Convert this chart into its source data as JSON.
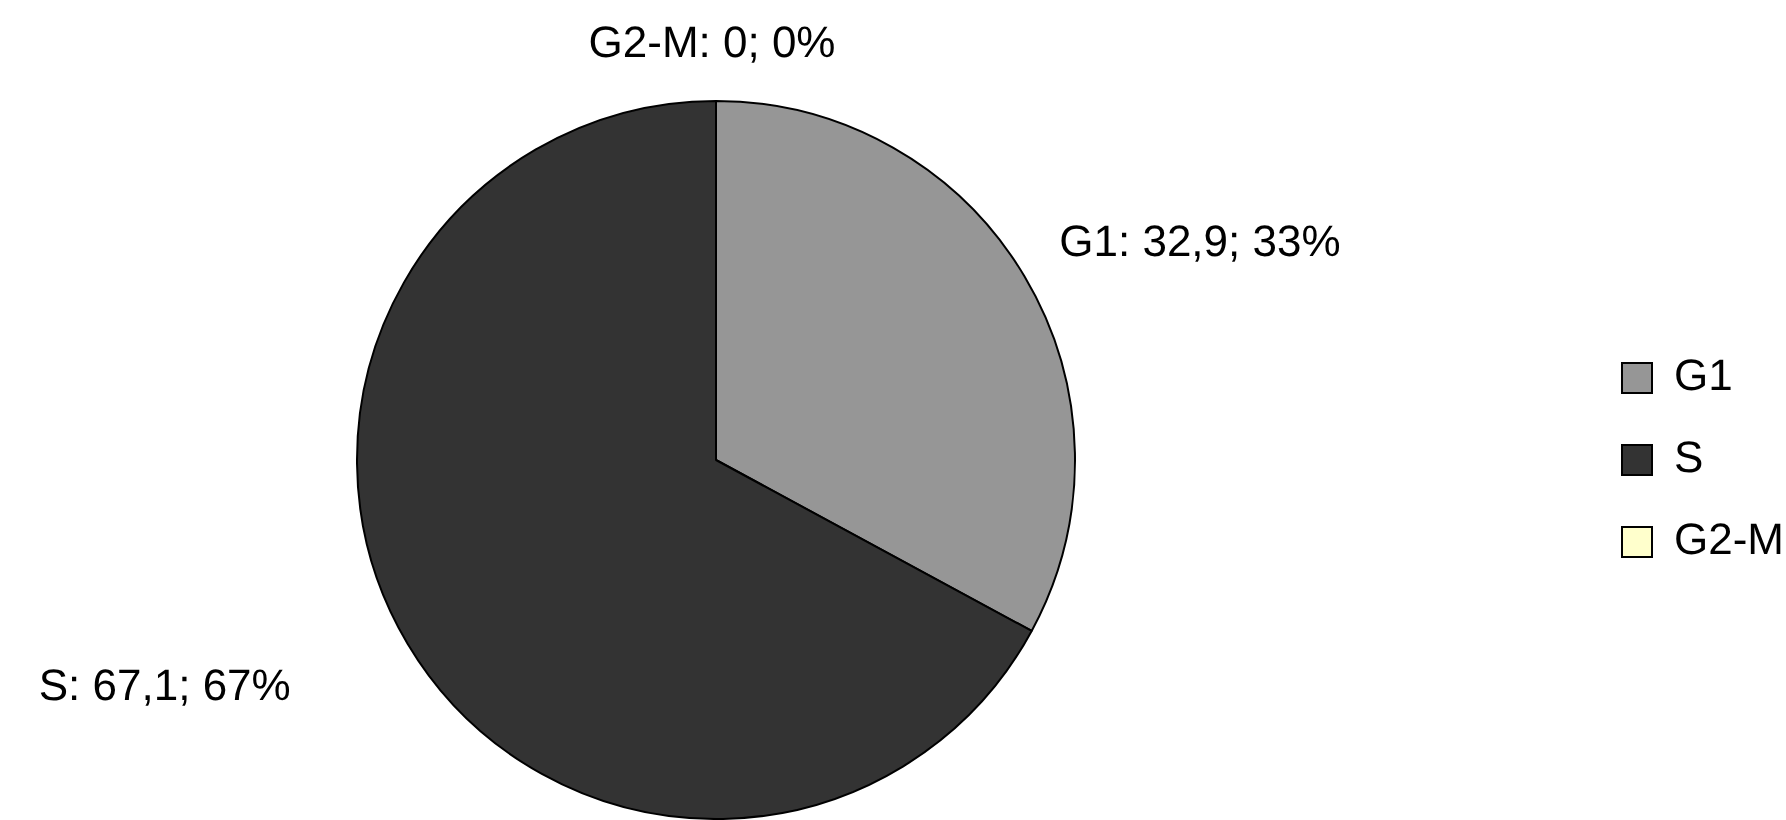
{
  "chart_data": {
    "type": "pie",
    "categories": [
      "G1",
      "S",
      "G2-M"
    ],
    "values": [
      32.9,
      67.1,
      0
    ],
    "colors": [
      "#969696",
      "#333333",
      "#ffffcc"
    ],
    "value_labels": [
      "G1: 32,9; 33%",
      "S: 67,1; 67%",
      "G2-M: 0; 0%"
    ],
    "legend": "right"
  }
}
